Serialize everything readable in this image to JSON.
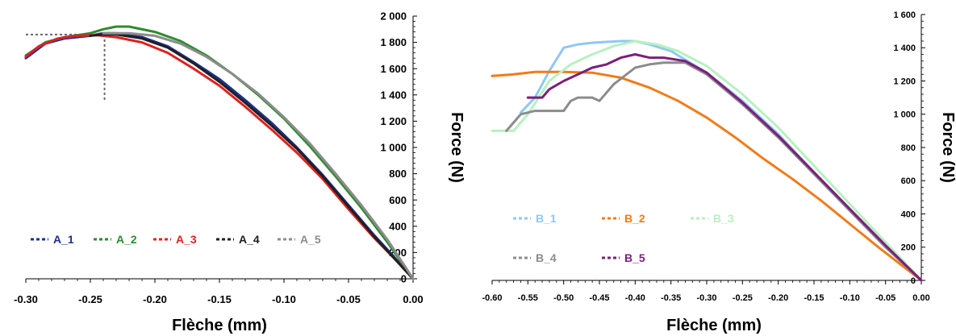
{
  "chart_data": [
    {
      "type": "line",
      "xlabel": "Flèche (mm)",
      "ylabel": "Force (N)",
      "xlim": [
        -0.3,
        0.0
      ],
      "ylim": [
        0,
        2000
      ],
      "x_ticks": [
        "-0.30",
        "-0.25",
        "-0.20",
        "-0.15",
        "-0.10",
        "-0.05",
        "0.00"
      ],
      "y_ticks": [
        "0",
        "200",
        "400",
        "600",
        "800",
        "1 000",
        "1 200",
        "1 400",
        "1 600",
        "1 800",
        "2 000"
      ],
      "grid": false,
      "legend_position": "bottom-left",
      "series": [
        {
          "name": "A_1",
          "color": "#1f2f8f",
          "x": [
            -0.3,
            -0.285,
            -0.27,
            -0.25,
            -0.24,
            -0.23,
            -0.21,
            -0.19,
            -0.17,
            -0.15,
            -0.13,
            -0.11,
            -0.09,
            -0.07,
            -0.05,
            -0.03,
            -0.015,
            0.0
          ],
          "y": [
            1680,
            1790,
            1830,
            1850,
            1870,
            1870,
            1840,
            1770,
            1650,
            1520,
            1360,
            1190,
            1000,
            790,
            560,
            330,
            170,
            0
          ]
        },
        {
          "name": "A_2",
          "color": "#2e8b2e",
          "x": [
            -0.3,
            -0.285,
            -0.27,
            -0.25,
            -0.24,
            -0.23,
            -0.22,
            -0.2,
            -0.18,
            -0.16,
            -0.14,
            -0.12,
            -0.1,
            -0.08,
            -0.06,
            -0.04,
            -0.02,
            0.0
          ],
          "y": [
            1700,
            1800,
            1840,
            1870,
            1900,
            1920,
            1920,
            1880,
            1810,
            1700,
            1560,
            1400,
            1220,
            1010,
            780,
            540,
            280,
            0
          ]
        },
        {
          "name": "A_3",
          "color": "#e02020",
          "x": [
            -0.3,
            -0.29,
            -0.275,
            -0.26,
            -0.245,
            -0.23,
            -0.21,
            -0.19,
            -0.17,
            -0.15,
            -0.13,
            -0.11,
            -0.09,
            -0.07,
            -0.05,
            -0.03,
            -0.015,
            0.0
          ],
          "y": [
            1690,
            1770,
            1830,
            1850,
            1855,
            1840,
            1800,
            1720,
            1600,
            1470,
            1310,
            1140,
            960,
            760,
            530,
            310,
            160,
            0
          ]
        },
        {
          "name": "A_4",
          "color": "#202020",
          "x": [
            -0.25,
            -0.24,
            -0.23,
            -0.21,
            -0.19,
            -0.17,
            -0.15,
            -0.13,
            -0.11,
            -0.09,
            -0.07,
            -0.05,
            -0.03,
            -0.015,
            0.0
          ],
          "y": [
            1850,
            1860,
            1860,
            1830,
            1760,
            1640,
            1500,
            1340,
            1170,
            990,
            780,
            550,
            320,
            160,
            0
          ]
        },
        {
          "name": "A_5",
          "color": "#8c8c8c",
          "x": [
            -0.24,
            -0.22,
            -0.2,
            -0.18,
            -0.16,
            -0.14,
            -0.12,
            -0.1,
            -0.08,
            -0.06,
            -0.04,
            -0.02,
            0.0
          ],
          "y": [
            1870,
            1870,
            1850,
            1790,
            1690,
            1560,
            1410,
            1230,
            1030,
            800,
            560,
            300,
            0
          ]
        }
      ],
      "annotations": [
        {
          "type": "dotted-crosshair",
          "color": "#666666",
          "x": -0.239,
          "y": 1860,
          "y_min": 1350,
          "x_min": -0.3
        }
      ]
    },
    {
      "type": "line",
      "xlabel": "Flèche (mm)",
      "ylabel": "Force (N)",
      "xlim": [
        -0.6,
        0.0
      ],
      "ylim": [
        0,
        1600
      ],
      "x_ticks": [
        "-0.60",
        "-0.55",
        "-0.50",
        "-0.45",
        "-0.40",
        "-0.35",
        "-0.30",
        "-0.25",
        "-0.20",
        "-0.15",
        "-0.10",
        "-0.05",
        "0.00"
      ],
      "y_ticks": [
        "0",
        "200",
        "400",
        "600",
        "800",
        "1 000",
        "1 200",
        "1 400",
        "1 600"
      ],
      "grid": false,
      "legend_position": "bottom-left",
      "series": [
        {
          "name": "B_1",
          "color": "#8ec8f2",
          "x": [
            -0.56,
            -0.54,
            -0.52,
            -0.5,
            -0.48,
            -0.46,
            -0.44,
            -0.42,
            -0.4,
            -0.38,
            -0.35,
            -0.3,
            -0.25,
            -0.2,
            -0.15,
            -0.1,
            -0.05,
            0.0
          ],
          "y": [
            1010,
            1100,
            1260,
            1400,
            1420,
            1430,
            1435,
            1440,
            1440,
            1420,
            1380,
            1250,
            1080,
            880,
            650,
            420,
            200,
            0
          ]
        },
        {
          "name": "B_2",
          "color": "#f07c18",
          "x": [
            -0.6,
            -0.57,
            -0.54,
            -0.5,
            -0.46,
            -0.42,
            -0.38,
            -0.34,
            -0.3,
            -0.26,
            -0.22,
            -0.18,
            -0.14,
            -0.1,
            -0.06,
            -0.03,
            0.0
          ],
          "y": [
            1230,
            1240,
            1255,
            1255,
            1250,
            1220,
            1160,
            1080,
            980,
            860,
            730,
            610,
            480,
            340,
            200,
            100,
            0
          ]
        },
        {
          "name": "B_3",
          "color": "#b8f0c0",
          "x": [
            -0.6,
            -0.57,
            -0.55,
            -0.52,
            -0.49,
            -0.46,
            -0.43,
            -0.4,
            -0.37,
            -0.34,
            -0.3,
            -0.25,
            -0.2,
            -0.15,
            -0.1,
            -0.05,
            0.0
          ],
          "y": [
            900,
            900,
            1000,
            1200,
            1300,
            1360,
            1410,
            1440,
            1420,
            1380,
            1290,
            1120,
            920,
            690,
            460,
            230,
            0
          ]
        },
        {
          "name": "B_4",
          "color": "#8c8c8c",
          "x": [
            -0.58,
            -0.56,
            -0.54,
            -0.5,
            -0.49,
            -0.48,
            -0.46,
            -0.45,
            -0.43,
            -0.4,
            -0.38,
            -0.36,
            -0.33,
            -0.3,
            -0.25,
            -0.2,
            -0.15,
            -0.1,
            -0.05,
            0.0
          ],
          "y": [
            900,
            1000,
            1020,
            1020,
            1080,
            1100,
            1100,
            1080,
            1180,
            1280,
            1300,
            1310,
            1310,
            1240,
            1060,
            860,
            640,
            420,
            200,
            0
          ]
        },
        {
          "name": "B_5",
          "color": "#7b1f7b",
          "x": [
            -0.55,
            -0.53,
            -0.52,
            -0.5,
            -0.48,
            -0.46,
            -0.44,
            -0.42,
            -0.4,
            -0.38,
            -0.36,
            -0.33,
            -0.3,
            -0.25,
            -0.2,
            -0.15,
            -0.1,
            -0.05,
            0.0
          ],
          "y": [
            1100,
            1100,
            1150,
            1200,
            1240,
            1280,
            1300,
            1340,
            1360,
            1340,
            1340,
            1320,
            1250,
            1070,
            870,
            650,
            430,
            210,
            0
          ]
        }
      ]
    }
  ]
}
